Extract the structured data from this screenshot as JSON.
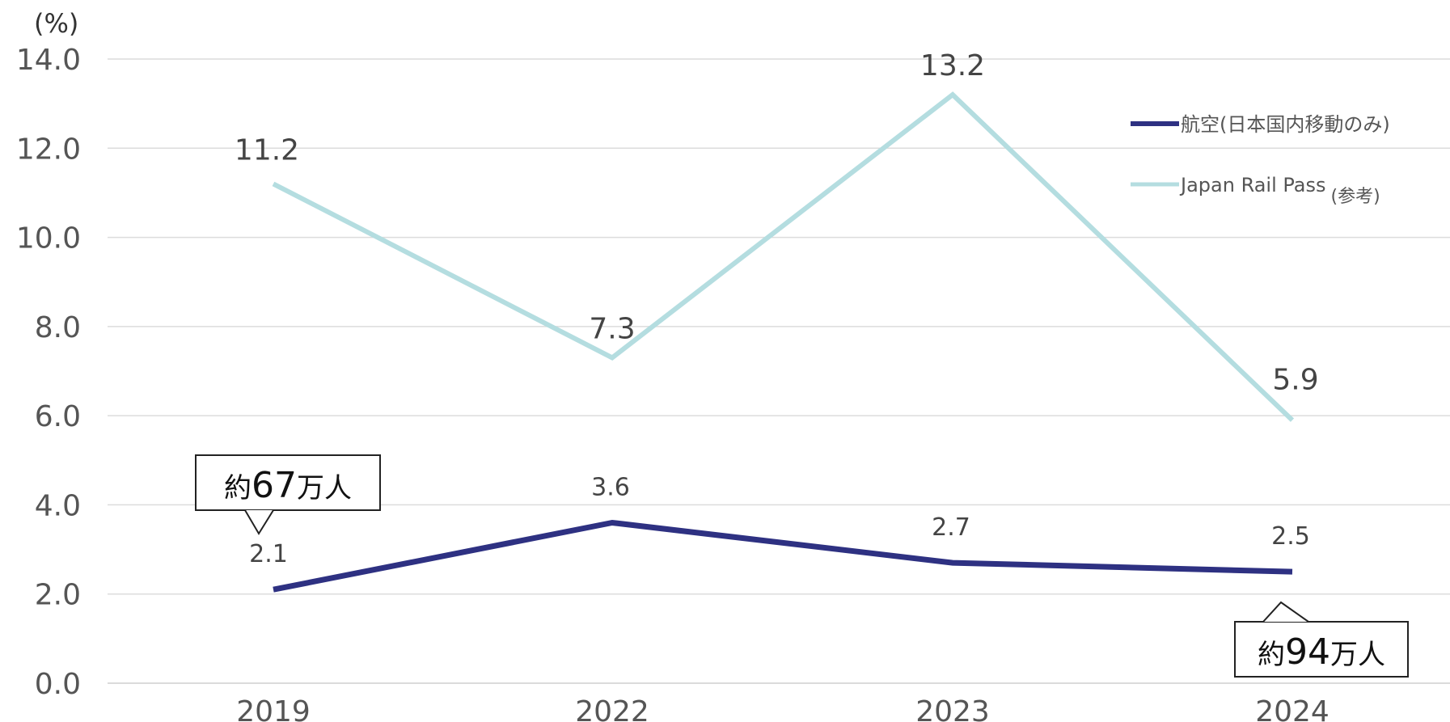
{
  "chart_data": {
    "type": "line",
    "ylabel": "(%)",
    "ylim": [
      0,
      14
    ],
    "y_ticks": [
      "0.0",
      "2.0",
      "4.0",
      "6.0",
      "8.0",
      "10.0",
      "12.0",
      "14.0"
    ],
    "categories": [
      "2019",
      "2022",
      "2023",
      "2024"
    ],
    "grid": true,
    "legend_position": "top-right",
    "series": [
      {
        "name": "航空(日本国内移動のみ)",
        "values": [
          2.1,
          3.6,
          2.7,
          2.5
        ],
        "labels": [
          "2.1",
          "3.6",
          "2.7",
          "2.5"
        ],
        "color": "#2e3182"
      },
      {
        "name": "Japan Rail Pass",
        "name_suffix": "(参考)",
        "values": [
          11.2,
          7.3,
          13.2,
          5.9
        ],
        "labels": [
          "11.2",
          "7.3",
          "13.2",
          "5.9"
        ],
        "color": "#b4dde0"
      }
    ],
    "annotations": [
      {
        "prefix": "約",
        "number": "67",
        "suffix": "万人",
        "category": "2019"
      },
      {
        "prefix": "約",
        "number": "94",
        "suffix": "万人",
        "category": "2024"
      }
    ]
  }
}
